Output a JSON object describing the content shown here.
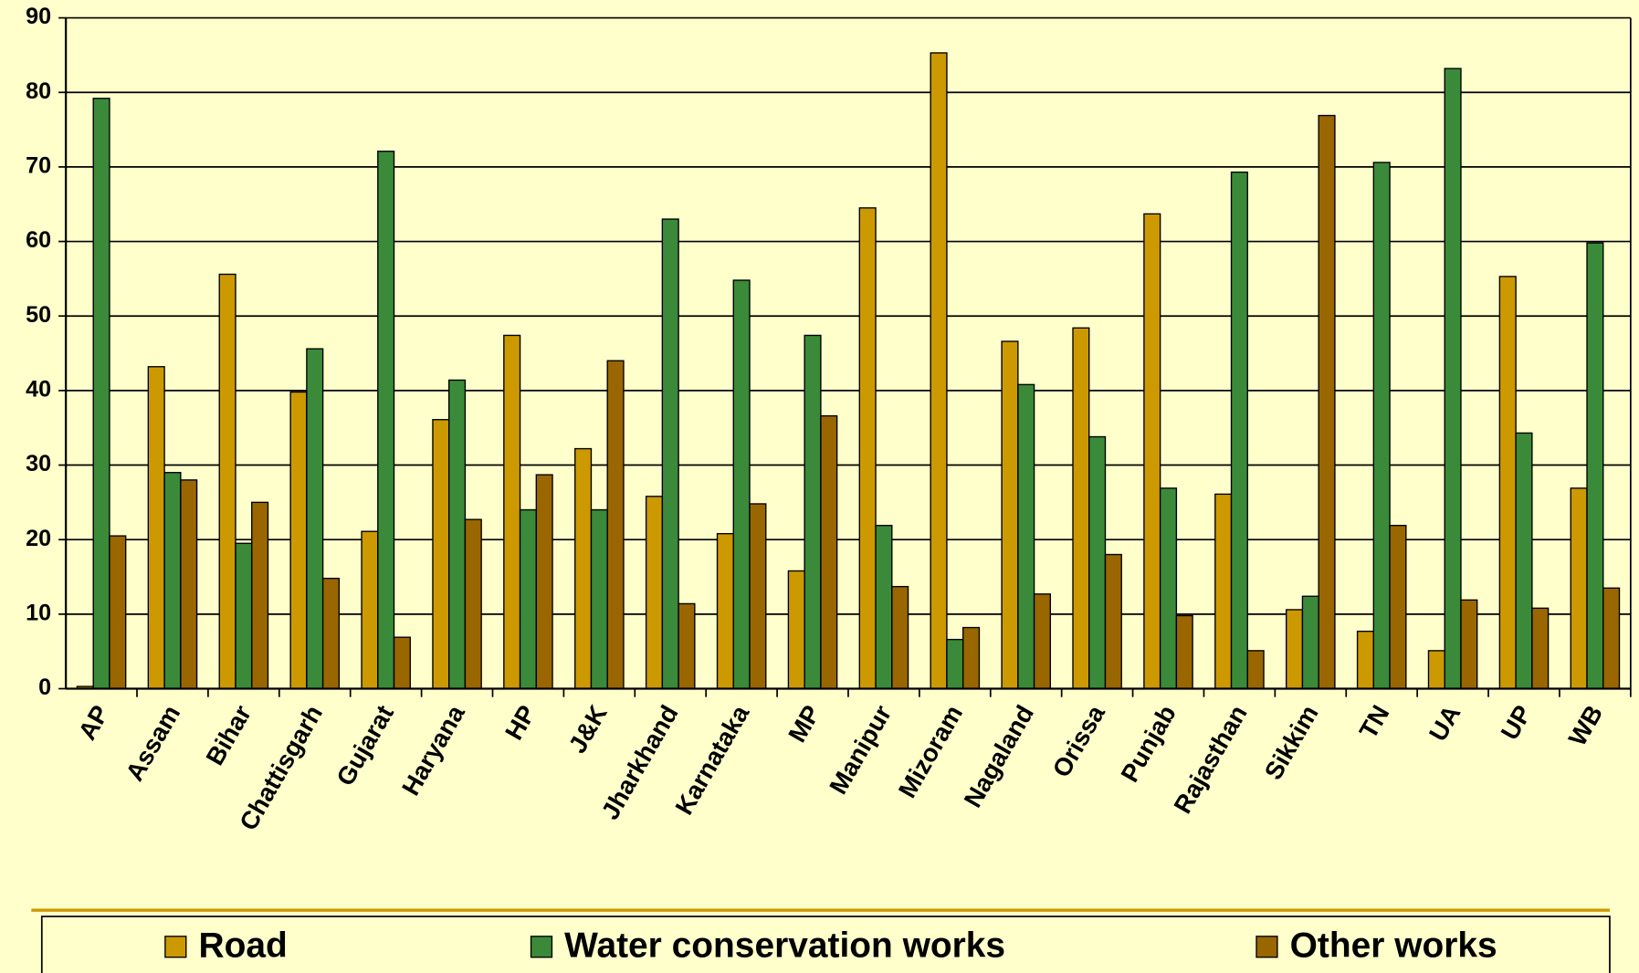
{
  "chart_data": {
    "type": "bar",
    "categories": [
      "AP",
      "Assam",
      "Bihar",
      "Chattisgarh",
      "Gujarat",
      "Haryana",
      "HP",
      "J&K",
      "Jharkhand",
      "Karnataka",
      "MP",
      "Manipur",
      "Mizoram",
      "Nagaland",
      "Orissa",
      "Punjab",
      "Rajasthan",
      "Sikkim",
      "TN",
      "UA",
      "UP",
      "WB"
    ],
    "series": [
      {
        "name": "Road",
        "color": "#cc9900",
        "values": [
          0.3,
          43.2,
          55.6,
          39.8,
          21.1,
          36.1,
          47.4,
          32.2,
          25.8,
          20.8,
          15.8,
          64.5,
          85.3,
          46.6,
          48.4,
          63.7,
          26.1,
          10.6,
          7.7,
          5.1,
          55.3,
          26.9
        ]
      },
      {
        "name": "Water conservation works",
        "color": "#3a8a3a",
        "values": [
          79.2,
          29,
          19.5,
          45.6,
          72.1,
          41.4,
          24,
          24,
          63,
          54.8,
          47.4,
          21.9,
          6.6,
          40.8,
          33.8,
          26.9,
          69.3,
          12.4,
          70.6,
          83.2,
          34.3,
          59.8
        ]
      },
      {
        "name": "Other works",
        "color": "#996600",
        "values": [
          20.5,
          28,
          25,
          14.8,
          6.9,
          22.7,
          28.7,
          44,
          11.4,
          24.8,
          36.6,
          13.7,
          8.2,
          12.7,
          18,
          9.8,
          5.1,
          76.9,
          21.9,
          11.9,
          10.8,
          13.5
        ]
      }
    ],
    "ylim": [
      0,
      90
    ],
    "yticks": [
      0,
      10,
      20,
      30,
      40,
      50,
      60,
      70,
      80,
      90
    ],
    "grid": true,
    "legend": "bottom"
  }
}
